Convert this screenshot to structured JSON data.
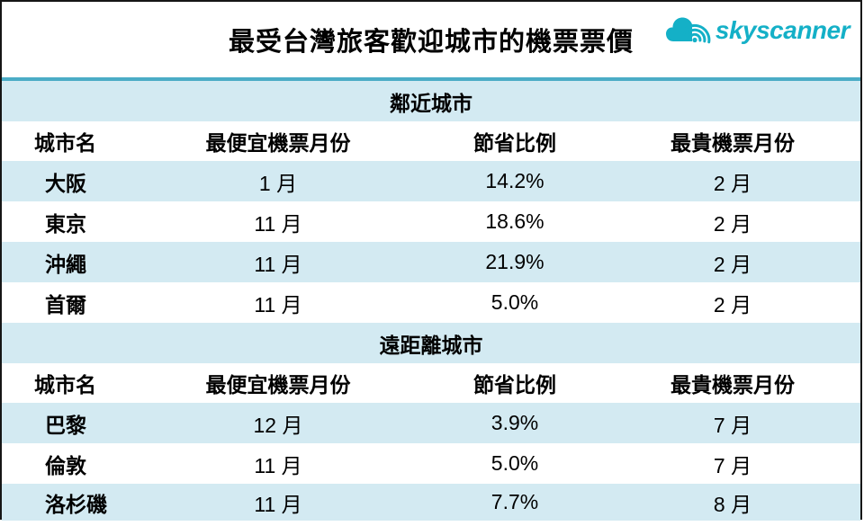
{
  "header": {
    "title": "最受台灣旅客歡迎城市的機票票價",
    "logo_text": "skyscanner"
  },
  "colors": {
    "accent_teal": "#4bacc6",
    "row_light_blue": "#d3eaf2",
    "logo_teal": "#14b0c7",
    "border_black": "#161616"
  },
  "chart_data": {
    "type": "table",
    "title": "最受台灣旅客歡迎城市的機票票價",
    "columns": [
      "城市名",
      "最便宜機票月份",
      "節省比例",
      "最貴機票月份"
    ],
    "sections": [
      {
        "name": "鄰近城市",
        "rows": [
          [
            "大阪",
            "1 月",
            "14.2%",
            "2 月"
          ],
          [
            "東京",
            "11 月",
            "18.6%",
            "2 月"
          ],
          [
            "沖繩",
            "11 月",
            "21.9%",
            "2 月"
          ],
          [
            "首爾",
            "11 月",
            "5.0%",
            "2 月"
          ]
        ]
      },
      {
        "name": "遠距離城市",
        "rows": [
          [
            "巴黎",
            "12 月",
            "3.9%",
            "7 月"
          ],
          [
            "倫敦",
            "11 月",
            "5.0%",
            "7 月"
          ],
          [
            "洛杉磯",
            "11 月",
            "7.7%",
            "8 月"
          ]
        ]
      }
    ],
    "layout": {
      "striped": true,
      "stripe_pattern": "section band blue, header white, then alternating blue/white starting blue"
    }
  }
}
